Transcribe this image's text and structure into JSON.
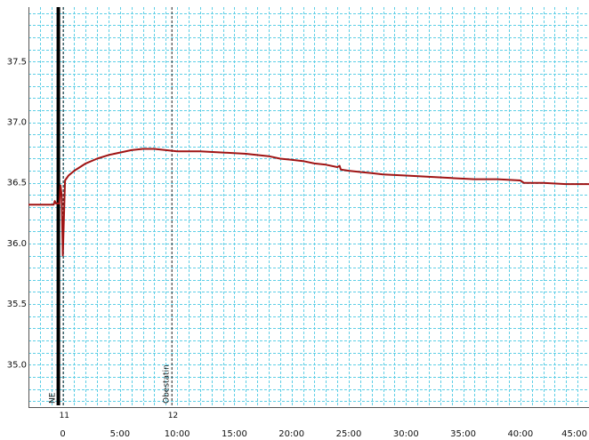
{
  "chart_data": {
    "type": "line",
    "title": "",
    "xlabel": "",
    "ylabel": "",
    "xlim": [
      -3,
      46
    ],
    "ylim": [
      34.65,
      37.95
    ],
    "grid": true,
    "x_ticks": [
      0,
      5,
      10,
      15,
      20,
      25,
      30,
      35,
      40,
      45
    ],
    "x_tick_labels": [
      "0",
      "5:00",
      "10:00",
      "15:00",
      "20:00",
      "25:00",
      "30:00",
      "35:00",
      "40:00",
      "45:00"
    ],
    "y_ticks": [
      35.0,
      35.5,
      36.0,
      36.5,
      37.0,
      37.5
    ],
    "y_tick_labels": [
      "35.0",
      "35.5",
      "36.0",
      "36.5",
      "37.0",
      "37.5"
    ],
    "markers": [
      {
        "x": 0.0,
        "label": "NE",
        "number": "11"
      },
      {
        "x": 9.5,
        "label": "Obestatin",
        "number": "12"
      }
    ],
    "series": [
      {
        "color": "#a01414",
        "x": [
          -3.0,
          -0.8,
          -0.7,
          -0.6,
          -0.3,
          -0.2,
          -0.1,
          0.0,
          0.2,
          0.5,
          1.0,
          1.5,
          2.0,
          3.0,
          4.0,
          5.0,
          6.0,
          7.0,
          8.0,
          9.0,
          10.0,
          12.0,
          14.0,
          16.0,
          17.0,
          18.0,
          19.0,
          20.0,
          21.0,
          22.0,
          23.0,
          24.0,
          24.2,
          24.3,
          25.0,
          26.0,
          27.0,
          28.0,
          30.0,
          32.0,
          34.0,
          36.0,
          38.0,
          40.0,
          40.3,
          42.0,
          44.0,
          46.0
        ],
        "y": [
          36.32,
          36.32,
          36.35,
          36.33,
          36.33,
          36.48,
          36.4,
          35.9,
          36.52,
          36.56,
          36.6,
          36.63,
          36.66,
          36.7,
          36.73,
          36.75,
          36.77,
          36.78,
          36.78,
          36.77,
          36.76,
          36.76,
          36.75,
          36.74,
          36.73,
          36.72,
          36.7,
          36.69,
          36.68,
          36.66,
          36.65,
          36.63,
          36.64,
          36.61,
          36.6,
          36.59,
          36.58,
          36.57,
          36.56,
          36.55,
          36.54,
          36.53,
          36.53,
          36.52,
          36.5,
          36.5,
          36.49,
          36.49
        ]
      }
    ]
  }
}
